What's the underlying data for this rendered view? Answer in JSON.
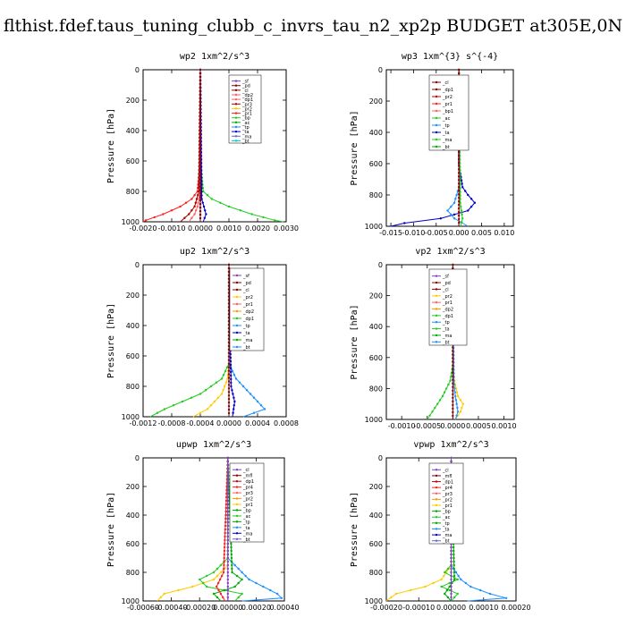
{
  "figure_title": "flthist.fdef.taus_tuning_clubb_c_invrs_tau_n2_xp2p  BUDGET at305E,0N",
  "chart_data": [
    {
      "type": "line",
      "title": "wp2   1xm^2/s^3",
      "ylabel": "Pressure [hPa]",
      "ylim": [
        1000,
        0
      ],
      "xlim": [
        -0.002,
        0.003
      ],
      "xticks": [
        "-0.0020",
        "-0.0010",
        "0.0000",
        "0.0010",
        "0.0020",
        "0.0030"
      ],
      "xtick_values": [
        -0.002,
        -0.001,
        0.0,
        0.001,
        0.002,
        0.003
      ],
      "yticks": [
        "0",
        "200",
        "400",
        "600",
        "800",
        "1000"
      ],
      "legend": [
        "_sf",
        "_pd",
        "_cl",
        "_dp2",
        "_dp1",
        "_pr3",
        "_pr2",
        "_pr1",
        "_bp",
        "_ac",
        "_tp",
        "_ta",
        "_ma",
        "_bt"
      ],
      "series": [
        {
          "name": "_pr1",
          "color": "#ff2020",
          "pressure": [
            0,
            600,
            800,
            850,
            900,
            950,
            990,
            1000
          ],
          "values": [
            0,
            0,
            -0.0001,
            -0.0003,
            -0.0007,
            -0.0013,
            -0.0019,
            -0.002
          ]
        },
        {
          "name": "_bp",
          "color": "#22cc22",
          "pressure": [
            0,
            600,
            800,
            850,
            900,
            950,
            990,
            1000
          ],
          "values": [
            0,
            0,
            0.0001,
            0.0004,
            0.001,
            0.0018,
            0.0026,
            0.0029
          ]
        },
        {
          "name": "_pr3",
          "color": "#aa0000",
          "pressure": [
            0,
            800,
            900,
            950,
            1000
          ],
          "values": [
            0,
            -5e-05,
            -0.0002,
            -0.0004,
            -0.0007
          ]
        },
        {
          "name": "_dp2",
          "color": "#ff6060",
          "pressure": [
            0,
            800,
            900,
            950,
            1000
          ],
          "values": [
            0,
            0,
            -0.0001,
            -0.0002,
            -0.0004
          ]
        },
        {
          "name": "_ta",
          "color": "#0000cc",
          "pressure": [
            0,
            850,
            950,
            1000
          ],
          "values": [
            0,
            5e-05,
            0.0002,
            0.0001
          ]
        },
        {
          "name": "_sf",
          "color": "#8040c0",
          "pressure": [
            0,
            1000
          ],
          "values": [
            0,
            0
          ]
        },
        {
          "name": "_cl",
          "color": "#8b0000",
          "pressure": [
            0,
            1000
          ],
          "values": [
            0,
            0
          ]
        }
      ]
    },
    {
      "type": "line",
      "title": "wp3   1xm^{3} s^{-4}",
      "ylabel": "Pressure [hPa]",
      "ylim": [
        1000,
        0
      ],
      "xlim": [
        -0.016,
        0.012
      ],
      "xticks": [
        "-0.015",
        "-0.010",
        "-0.005",
        "0.000",
        "0.005",
        "0.010"
      ],
      "xtick_values": [
        -0.015,
        -0.01,
        -0.005,
        0.0,
        0.005,
        0.01
      ],
      "yticks": [
        "0",
        "200",
        "400",
        "600",
        "800",
        "1000"
      ],
      "legend": [
        "_cl",
        "_dp1",
        "_pr2",
        "_pr1",
        "_bp1",
        "_ac",
        "_tp",
        "_ta",
        "_ma",
        "_bt"
      ],
      "series": [
        {
          "name": "_ta",
          "color": "#0000cc",
          "pressure": [
            0,
            600,
            750,
            800,
            850,
            900,
            950,
            980,
            1000
          ],
          "values": [
            0,
            0,
            0.0008,
            0.002,
            0.0035,
            0.002,
            -0.004,
            -0.012,
            -0.015
          ]
        },
        {
          "name": "_tp",
          "color": "#1e90ff",
          "pressure": [
            0,
            750,
            850,
            900,
            950,
            1000
          ],
          "values": [
            0,
            0,
            -0.001,
            -0.0025,
            -0.001,
            0.002
          ]
        },
        {
          "name": "_ac",
          "color": "#22cc22",
          "pressure": [
            0,
            850,
            950,
            1000
          ],
          "values": [
            0,
            0.0003,
            0.0008,
            0.0004
          ]
        },
        {
          "name": "_cl",
          "color": "#8b0000",
          "pressure": [
            0,
            1000
          ],
          "values": [
            0,
            0
          ]
        }
      ]
    },
    {
      "type": "line",
      "title": "up2   1xm^2/s^3",
      "ylabel": "Pressure [hPa]",
      "ylim": [
        1000,
        0
      ],
      "xlim": [
        -0.0012,
        0.0008
      ],
      "xticks": [
        "-0.0012",
        "-0.0008",
        "-0.0004",
        "0.0000",
        "0.0004",
        "0.0008"
      ],
      "xtick_values": [
        -0.0012,
        -0.0008,
        -0.0004,
        0.0,
        0.0004,
        0.0008
      ],
      "yticks": [
        "0",
        "200",
        "400",
        "600",
        "800",
        "1000"
      ],
      "legend": [
        "_sf",
        "_pd",
        "_cl",
        "_pr2",
        "_pr1",
        "_dp2",
        "_dp1",
        "_tp",
        "_ta",
        "_ma",
        "_bt"
      ],
      "series": [
        {
          "name": "_pr2",
          "color": "#ffcc00",
          "pressure": [
            0,
            650,
            750,
            850,
            950,
            1000
          ],
          "values": [
            0,
            0,
            -2e-05,
            -0.0001,
            -0.0003,
            -0.0005
          ]
        },
        {
          "name": "_dp1",
          "color": "#22cc22",
          "pressure": [
            0,
            650,
            750,
            850,
            950,
            1000
          ],
          "values": [
            0,
            0,
            -0.0001,
            -0.0004,
            -0.0009,
            -0.0011
          ]
        },
        {
          "name": "_tp",
          "color": "#1e90ff",
          "pressure": [
            0,
            650,
            700,
            750,
            850,
            950,
            1000
          ],
          "values": [
            0,
            0,
            5e-05,
            0.0001,
            0.0003,
            0.0005,
            0.0002
          ]
        },
        {
          "name": "_ta",
          "color": "#0000cc",
          "pressure": [
            0,
            800,
            900,
            1000
          ],
          "values": [
            0,
            3e-05,
            8e-05,
            5e-05
          ]
        },
        {
          "name": "_cl",
          "color": "#8b0000",
          "pressure": [
            0,
            1000
          ],
          "values": [
            0,
            0
          ]
        }
      ]
    },
    {
      "type": "line",
      "title": "vp2   1xm^2/s^3",
      "ylabel": "Pressure [hPa]",
      "ylim": [
        1000,
        0
      ],
      "xlim": [
        -0.0013,
        0.0012
      ],
      "xticks": [
        "-0.0010",
        "-0.0005",
        "0.0000",
        "0.0005",
        "0.0010"
      ],
      "xtick_values": [
        -0.001,
        -0.0005,
        0.0,
        0.0005,
        0.001
      ],
      "yticks": [
        "0",
        "200",
        "400",
        "600",
        "800",
        "1000"
      ],
      "legend": [
        "_sf",
        "_pd",
        "_cl",
        "_pr2",
        "_pr1",
        "_dp2",
        "_dp1",
        "_tp",
        "_ta",
        "_ma",
        "_bt"
      ],
      "series": [
        {
          "name": "_dp1",
          "color": "#22cc22",
          "pressure": [
            0,
            650,
            750,
            850,
            950,
            1000
          ],
          "values": [
            0,
            0,
            -5e-05,
            -0.0002,
            -0.0004,
            -0.0005
          ]
        },
        {
          "name": "_pr2",
          "color": "#ffcc00",
          "pressure": [
            0,
            650,
            750,
            850,
            900,
            950,
            1000
          ],
          "values": [
            0,
            0,
            3e-05,
            0.0001,
            0.0002,
            0.00015,
            5e-05
          ]
        },
        {
          "name": "_tp",
          "color": "#1e90ff",
          "pressure": [
            0,
            750,
            850,
            950,
            1000
          ],
          "values": [
            0,
            2e-05,
            5e-05,
            0.0001,
            5e-05
          ]
        },
        {
          "name": "_cl",
          "color": "#8b0000",
          "pressure": [
            0,
            1000
          ],
          "values": [
            0,
            0
          ]
        }
      ]
    },
    {
      "type": "line",
      "title": "upwp   1xm^2/s^3",
      "ylabel": "Pressure [hPa]",
      "ylim": [
        1000,
        0
      ],
      "xlim": [
        -0.0006,
        0.0004
      ],
      "xticks": [
        "-0.00060",
        "-0.00040",
        "-0.00020",
        "0.00000",
        "0.00020",
        "0.00040"
      ],
      "xtick_values": [
        -0.0006,
        -0.0004,
        -0.0002,
        0.0,
        0.0002,
        0.0004
      ],
      "yticks": [
        "0",
        "200",
        "400",
        "600",
        "800",
        "1000"
      ],
      "legend": [
        "_cl",
        "_mfl",
        "_dp1",
        "_pr4",
        "_pr3",
        "_pr2",
        "_pr1",
        "_bp",
        "_ac",
        "_tp",
        "_ta",
        "_ma",
        "_bt"
      ],
      "series": [
        {
          "name": "_ta",
          "color": "#1e90ff",
          "pressure": [
            0,
            700,
            750,
            800,
            850,
            900,
            950,
            980,
            1000
          ],
          "values": [
            0,
            0,
            5e-05,
            0.0001,
            0.00015,
            0.00025,
            0.00035,
            0.00038,
            0.0001
          ]
        },
        {
          "name": "_pr1",
          "color": "#ffcc00",
          "pressure": [
            0,
            750,
            850,
            900,
            950,
            1000
          ],
          "values": [
            0,
            0,
            -0.0001,
            -0.00025,
            -0.00045,
            -0.0005
          ]
        },
        {
          "name": "_ac",
          "color": "#22cc22",
          "pressure": [
            0,
            700,
            800,
            850,
            900,
            950,
            1000
          ],
          "values": [
            0,
            0,
            -0.0001,
            -0.0002,
            -0.00015,
            0.0001,
            5e-05
          ]
        },
        {
          "name": "_bp",
          "color": "#00aa00",
          "pressure": [
            0,
            800,
            850,
            900,
            950,
            1000
          ],
          "values": [
            0,
            3e-05,
            0.0001,
            5e-05,
            -0.0001,
            -5e-05
          ]
        },
        {
          "name": "_pr4",
          "color": "#ff2020",
          "pressure": [
            0,
            800,
            900,
            1000
          ],
          "values": [
            0,
            -3e-05,
            -8e-05,
            -2e-05
          ]
        },
        {
          "name": "_cl",
          "color": "#8040c0",
          "pressure": [
            0,
            1000
          ],
          "values": [
            0,
            0
          ]
        }
      ]
    },
    {
      "type": "line",
      "title": "vpwp   1xm^2/s^3",
      "ylabel": "Pressure [hPa]",
      "ylim": [
        1000,
        0
      ],
      "xlim": [
        -0.0002,
        0.0002
      ],
      "xticks": [
        "-0.00020",
        "-0.00010",
        "0.00000",
        "0.00010",
        "0.00020"
      ],
      "xtick_values": [
        -0.0002,
        -0.0001,
        0.0,
        0.0001,
        0.0002
      ],
      "yticks": [
        "0",
        "200",
        "400",
        "600",
        "800",
        "1000"
      ],
      "legend": [
        "_cl",
        "_mfl",
        "_dp1",
        "_pr4",
        "_pr3",
        "_pr2",
        "_pr1",
        "_bp",
        "_ac",
        "_tp",
        "_ta",
        "_ma",
        "_bt"
      ],
      "series": [
        {
          "name": "_pr1",
          "color": "#ffcc00",
          "pressure": [
            0,
            750,
            850,
            900,
            950,
            1000
          ],
          "values": [
            0,
            0,
            -3e-05,
            -8e-05,
            -0.00017,
            -0.0002
          ]
        },
        {
          "name": "_ta",
          "color": "#1e90ff",
          "pressure": [
            0,
            750,
            850,
            900,
            950,
            980,
            1000
          ],
          "values": [
            0,
            0,
            3e-05,
            6e-05,
            0.00012,
            0.00017,
            5e-05
          ]
        },
        {
          "name": "_ac",
          "color": "#22cc22",
          "pressure": [
            0,
            750,
            800,
            850,
            900,
            950,
            1000
          ],
          "values": [
            0,
            0,
            -2e-05,
            2e-05,
            -3e-05,
            2e-05,
            0.0
          ]
        },
        {
          "name": "_bp",
          "color": "#00aa00",
          "pressure": [
            0,
            850,
            950,
            1000
          ],
          "values": [
            0,
            1e-05,
            -2e-05,
            0.0
          ]
        },
        {
          "name": "_cl",
          "color": "#8040c0",
          "pressure": [
            0,
            1000
          ],
          "values": [
            0,
            0
          ]
        }
      ]
    }
  ]
}
